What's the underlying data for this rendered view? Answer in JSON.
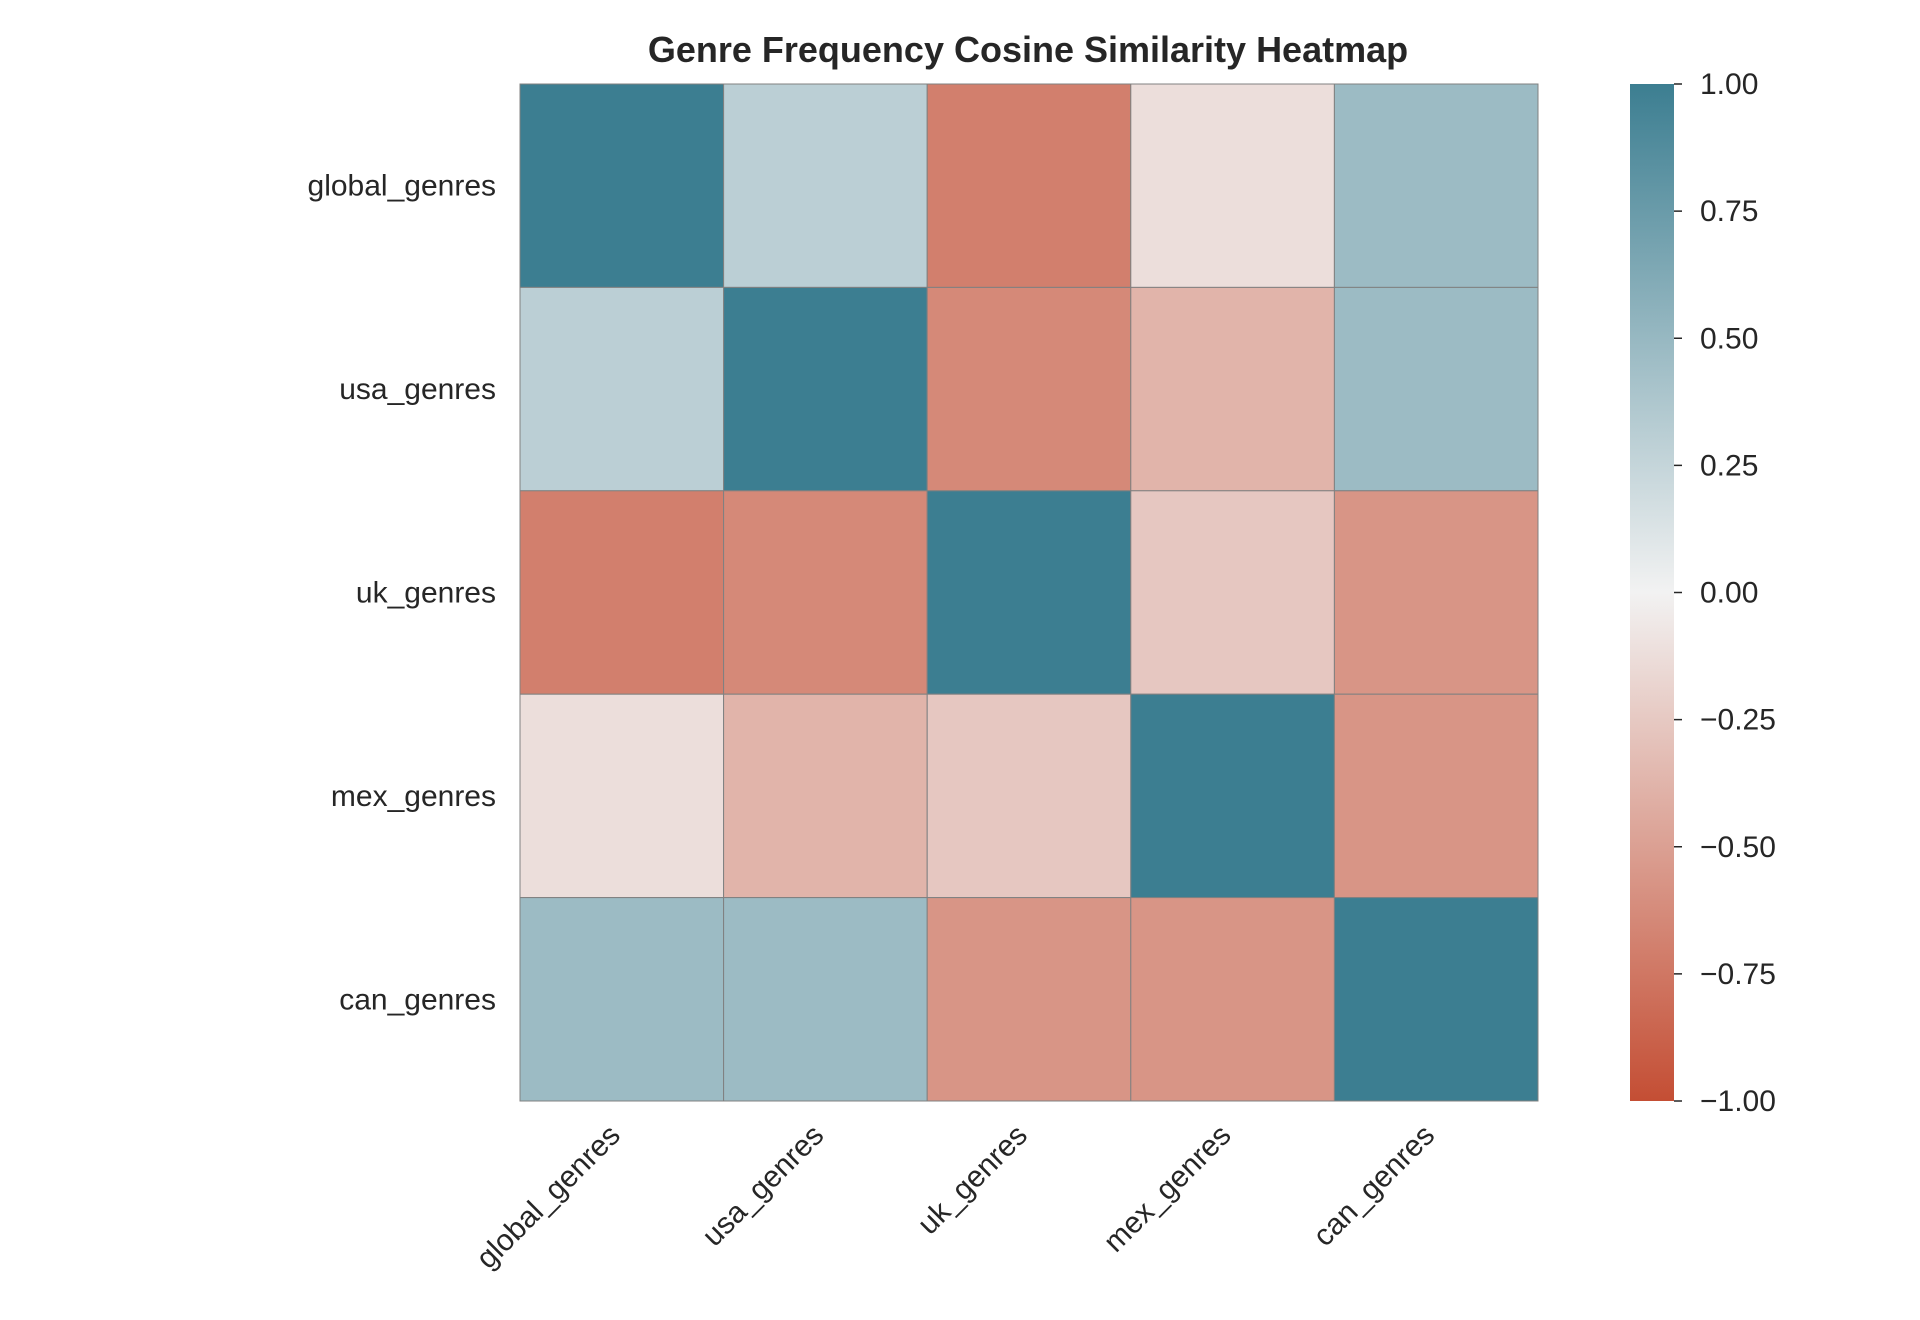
{
  "chart_data": {
    "type": "heatmap",
    "title": "Genre Frequency Cosine Similarity Heatmap",
    "rows": [
      "global_genres",
      "usa_genres",
      "uk_genres",
      "mex_genres",
      "can_genres"
    ],
    "columns": [
      "global_genres",
      "usa_genres",
      "uk_genres",
      "mex_genres",
      "can_genres"
    ],
    "values": [
      [
        1.0,
        0.3,
        -0.7,
        -0.12,
        0.47
      ],
      [
        0.3,
        1.0,
        -0.64,
        -0.38,
        0.47
      ],
      [
        -0.7,
        -0.64,
        1.0,
        -0.26,
        -0.57
      ],
      [
        -0.12,
        -0.38,
        -0.26,
        1.0,
        -0.57
      ],
      [
        0.47,
        0.47,
        -0.57,
        -0.57,
        1.0
      ]
    ],
    "colorbar": {
      "range": [
        -1.0,
        1.0
      ],
      "ticks": [
        "1.00",
        "0.75",
        "0.50",
        "0.25",
        "0.00",
        "−0.25",
        "−0.50",
        "−0.75",
        "−1.00"
      ],
      "tick_values": [
        1.0,
        0.75,
        0.5,
        0.25,
        0.0,
        -0.25,
        -0.5,
        -0.75,
        -1.0
      ],
      "color_low": "#c44e34",
      "color_mid": "#f2f2f2",
      "color_high": "#3c7e91"
    },
    "grid": false
  }
}
